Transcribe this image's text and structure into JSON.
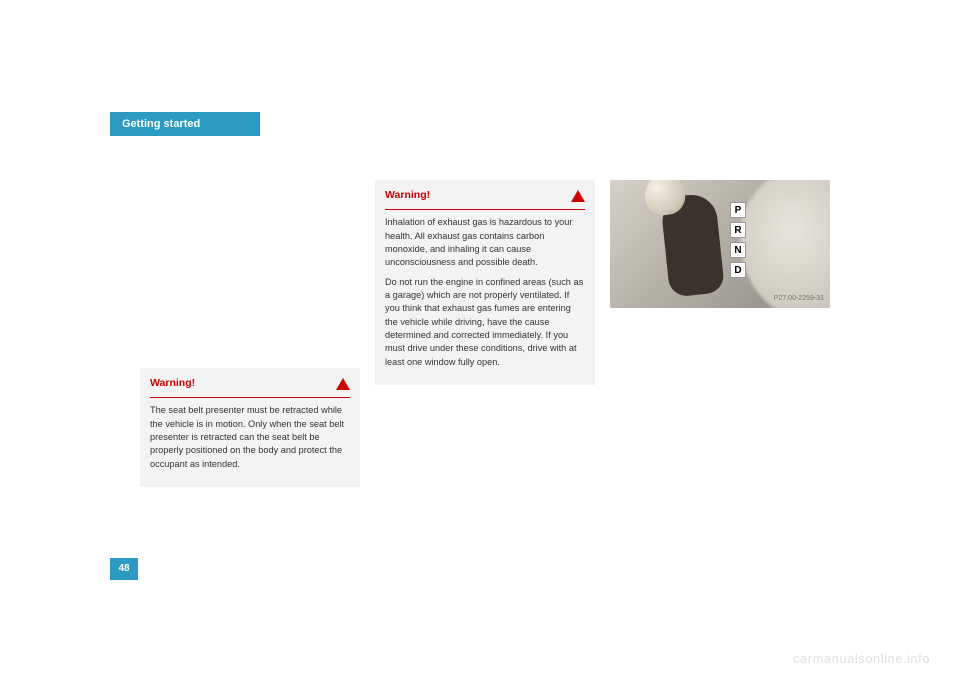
{
  "header": {
    "tab": "Getting started"
  },
  "page_number": "48",
  "watermark": "carmanualsonline.info",
  "warning1": {
    "title": "Warning!",
    "body": "The seat belt presenter must be retracted while the vehicle is in motion. Only when the seat belt presenter is retracted can the seat belt be properly positioned on the body and protect the occupant as intended."
  },
  "warning2": {
    "title": "Warning!",
    "p1": "Inhalation of exhaust gas is hazardous to your health. All exhaust gas contains carbon monoxide, and inhaling it can cause unconsciousness and possible death.",
    "p2": "Do not run the engine in confined areas (such as a garage) which are not properly ventilated. If you think that exhaust gas fumes are entering the vehicle while driving, have the cause determined and corrected immediately. If you must drive under these conditions, drive with at least one window fully open."
  },
  "photo": {
    "gears": {
      "p": "P",
      "r": "R",
      "n": "N",
      "d": "D"
    },
    "label": "P27.00-2259-31"
  },
  "colors": {
    "accent": "#2b9bc4",
    "warning_red": "#cc0000",
    "warning_bg": "#f3f3f3",
    "watermark": "#e0e0e0"
  }
}
